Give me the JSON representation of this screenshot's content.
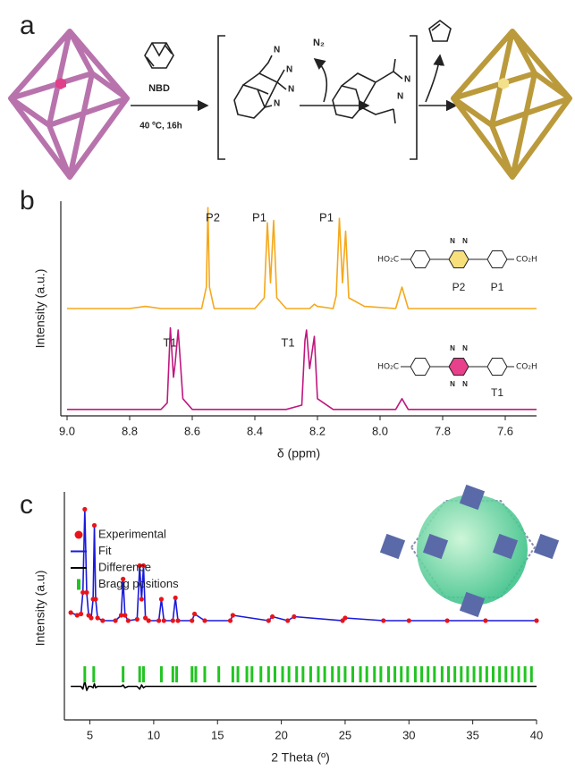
{
  "panel_a": {
    "label": "a",
    "reagent": "NBD",
    "conditions": "40 ºC, 16h",
    "byproduct_1": "N₂",
    "atoms": [
      "N",
      "N",
      "N",
      "N",
      "N",
      "N"
    ]
  },
  "chart_data": [
    {
      "type": "line",
      "panel_label": "b",
      "xlabel": "δ (ppm)",
      "ylabel": "Intensity (a.u.)",
      "xlim": [
        9.02,
        7.5
      ],
      "ylim": [
        0,
        100
      ],
      "xticks": [
        {
          "value": 9,
          "label": "9.0"
        },
        8.8,
        8.6,
        8.4,
        8.2,
        {
          "value": 8,
          "label": "8.0"
        },
        7.8,
        7.6
      ],
      "x": [
        9.0,
        8.9,
        8.8,
        8.75,
        8.7,
        8.68,
        8.67,
        8.66,
        8.655,
        8.645,
        8.63,
        8.6,
        8.57,
        8.555,
        8.55,
        8.545,
        8.53,
        8.4,
        8.37,
        8.36,
        8.35,
        8.34,
        8.33,
        8.3,
        8.25,
        8.24,
        8.235,
        8.225,
        8.21,
        8.2,
        8.15,
        8.14,
        8.13,
        8.12,
        8.11,
        8.1,
        8.05,
        7.95,
        7.93,
        7.91,
        7.8,
        7.6,
        7.5
      ],
      "series": [
        {
          "mode": "line",
          "color": "#f5a81c",
          "values": [
            50,
            50,
            50,
            51,
            50,
            50,
            50,
            50,
            50,
            50,
            50,
            50,
            50,
            60,
            97,
            60,
            50,
            50,
            55,
            90,
            62,
            91,
            55,
            50,
            50,
            50,
            50,
            50,
            52,
            51,
            50,
            56,
            92,
            62,
            86,
            55,
            51,
            50,
            60,
            50,
            50,
            50,
            50
          ]
        },
        {
          "mode": "line",
          "color": "#c0177f",
          "values": [
            3,
            3,
            3,
            3,
            3,
            6,
            41,
            18,
            24,
            40,
            8,
            3,
            3,
            3,
            3,
            3,
            3,
            3,
            3,
            3,
            3,
            3,
            3,
            3,
            5,
            35,
            40,
            22,
            37,
            8,
            3,
            3,
            3,
            3,
            3,
            3,
            3,
            3,
            8,
            3,
            3,
            3,
            3
          ]
        }
      ],
      "annotations": [
        "P2",
        "P1",
        "P1",
        "T1",
        "T1"
      ],
      "insets": [
        {
          "left": "HO₂C",
          "right": "CO₂H",
          "atoms": [
            "N",
            "N"
          ],
          "labels": [
            "P2",
            "P1"
          ]
        },
        {
          "left": "HO₂C",
          "right": "CO₂H",
          "atoms": [
            "N",
            "N",
            "N",
            "N"
          ],
          "labels": [
            "T1"
          ]
        }
      ]
    },
    {
      "type": "line",
      "panel_label": "c",
      "xlabel": "2 Theta (º)",
      "ylabel": "Intensity (a.u)",
      "xlim": [
        3,
        40
      ],
      "ylim": [
        -70,
        100
      ],
      "xticks": [
        5,
        10,
        15,
        20,
        25,
        30,
        35,
        40
      ],
      "legend": "upper left",
      "x": [
        3.5,
        4.0,
        4.3,
        4.45,
        4.6,
        4.75,
        4.9,
        5.1,
        5.25,
        5.35,
        5.45,
        5.6,
        6.0,
        7.0,
        7.45,
        7.6,
        7.75,
        8.0,
        8.7,
        8.9,
        9.05,
        9.2,
        9.35,
        9.6,
        10.4,
        10.6,
        10.8,
        11.5,
        11.7,
        11.9,
        13.0,
        13.2,
        14.0,
        16.0,
        16.2,
        19.0,
        19.3,
        20.5,
        21.0,
        24.8,
        25.0,
        28.0,
        30.0,
        33.0,
        36.0,
        40.0
      ],
      "series": [
        {
          "name": "Experimental",
          "mode": "markers",
          "color": "#e8141a",
          "values": [
            10,
            8,
            9,
            25,
            87,
            25,
            8,
            6,
            20,
            75,
            20,
            6,
            4,
            4,
            8,
            35,
            8,
            4,
            5,
            45,
            20,
            45,
            6,
            4,
            4,
            20,
            4,
            4,
            21,
            4,
            4,
            9,
            4,
            4,
            8,
            4,
            7,
            4,
            7,
            4,
            6,
            4,
            4,
            4,
            4,
            4
          ]
        },
        {
          "name": "Fit",
          "mode": "line",
          "color": "#1a1adb",
          "values": [
            10,
            8,
            9,
            25,
            87,
            25,
            8,
            6,
            20,
            75,
            20,
            6,
            4,
            4,
            8,
            35,
            8,
            4,
            5,
            45,
            20,
            45,
            6,
            4,
            4,
            20,
            4,
            4,
            21,
            4,
            4,
            9,
            4,
            4,
            8,
            4,
            7,
            4,
            7,
            4,
            6,
            4,
            4,
            4,
            4,
            4
          ]
        },
        {
          "name": "Difference",
          "mode": "line",
          "color": "#000000",
          "values": [
            -45,
            -45,
            -45,
            -47,
            -41,
            -48,
            -45,
            -45,
            -46,
            -43,
            -46,
            -45,
            -45,
            -45,
            -45,
            -44,
            -46,
            -45,
            -45,
            -47,
            -44,
            -46,
            -45,
            -45,
            -45,
            -45,
            -45,
            -45,
            -45,
            -45,
            -45,
            -45,
            -45,
            -45,
            -45,
            -45,
            -45,
            -45,
            -45,
            -45,
            -45,
            -45,
            -45,
            -45,
            -45,
            -45
          ]
        },
        {
          "name": "Bragg positions",
          "mode": "ticks",
          "color": "#22c422",
          "x": [
            4.6,
            5.3,
            7.6,
            8.9,
            9.2,
            10.6,
            11.5,
            11.8,
            13.0,
            13.3,
            14.0,
            15.1,
            16.2,
            16.6,
            17.3,
            17.7,
            18.4,
            19.0,
            19.5,
            20.1,
            20.6,
            21.2,
            21.7,
            22.3,
            22.9,
            23.4,
            24.0,
            24.5,
            25.0,
            25.6,
            26.2,
            26.7,
            27.3,
            27.8,
            28.4,
            28.9,
            29.4,
            29.9,
            30.5,
            31.0,
            31.5,
            32.0,
            32.6,
            33.1,
            33.6,
            34.1,
            34.6,
            35.1,
            35.6,
            36.1,
            36.6,
            37.1,
            37.6,
            38.1,
            38.6,
            39.1,
            39.6
          ]
        }
      ]
    }
  ]
}
